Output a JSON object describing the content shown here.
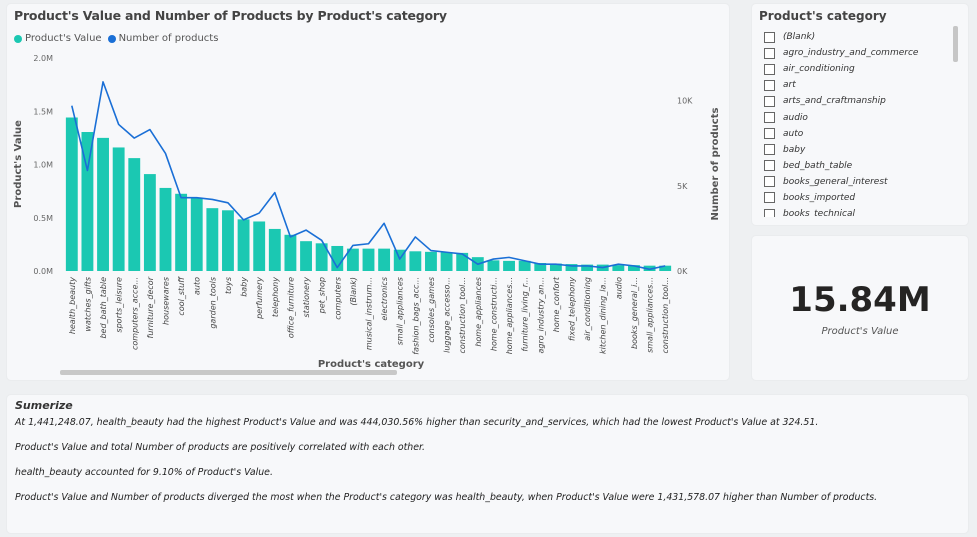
{
  "chart": {
    "title": "Product's Value and Number of Products  by Product's category",
    "legend": [
      {
        "label": "Product's Value",
        "color": "#1bc8b2"
      },
      {
        "label": "Number of products",
        "color": "#1a6fd6"
      }
    ],
    "xlabel": "Product's category",
    "ylabel_left": "Product's Value",
    "ylabel_right": "Number of products",
    "left_ticks": [
      "0.0M",
      "0.5M",
      "1.0M",
      "1.5M",
      "2.0M"
    ],
    "right_ticks": [
      "0K",
      "5K",
      "10K"
    ]
  },
  "chart_data": {
    "type": "bar",
    "categories": [
      "health_beauty",
      "watches_gifts",
      "bed_bath_table",
      "sports_leisure",
      "computers_acce...",
      "furniture_decor",
      "housewares",
      "cool_stuff",
      "auto",
      "garden_tools",
      "toys",
      "baby",
      "perfumery",
      "telephony",
      "office_furniture",
      "stationery",
      "pet_shop",
      "computers",
      "(Blank)",
      "musical_instrum...",
      "electronics",
      "small_appliances",
      "fashion_bags_acc...",
      "consoles_games",
      "luggage_accesso...",
      "construction_tool...",
      "home_appliances",
      "home_constructi...",
      "home_appliances...",
      "furniture_living_r...",
      "agro_industry_an...",
      "home_confort",
      "fixed_telephony",
      "air_conditioning",
      "kitchen_dining_la...",
      "audio",
      "books_general_i...",
      "small_appliances...",
      "construction_tool..."
    ],
    "series": [
      {
        "name": "Product's Value",
        "axis": "left",
        "color": "#1bc8b2",
        "values": [
          1441248,
          1305000,
          1250000,
          1160000,
          1060000,
          910000,
          780000,
          725000,
          690000,
          590000,
          570000,
          485000,
          465000,
          395000,
          340000,
          280000,
          260000,
          235000,
          210000,
          210000,
          210000,
          200000,
          185000,
          180000,
          175000,
          170000,
          130000,
          100000,
          95000,
          95000,
          75000,
          70000,
          65000,
          60000,
          60000,
          55000,
          55000,
          50000,
          50000
        ]
      },
      {
        "name": "Number of products",
        "axis": "right",
        "color": "#1a6fd6",
        "values": [
          9700,
          5900,
          11100,
          8600,
          7800,
          8300,
          6900,
          4300,
          4300,
          4200,
          4000,
          3000,
          3400,
          4600,
          2000,
          2400,
          1800,
          200,
          1500,
          1600,
          2800,
          700,
          2000,
          1200,
          1100,
          1000,
          400,
          700,
          800,
          600,
          400,
          400,
          300,
          300,
          200,
          400,
          300,
          100,
          300
        ]
      }
    ],
    "ylim_left": [
      0,
      2000000
    ],
    "ylim_right": [
      0,
      12500
    ],
    "xlabel": "Product's category",
    "ylabel": "Product's Value",
    "ylabel_right": "Number of products",
    "title": "Product's Value and Number of Products  by Product's category"
  },
  "slicer": {
    "title": "Product's category",
    "items": [
      "(Blank)",
      "agro_industry_and_commerce",
      "air_conditioning",
      "art",
      "arts_and_craftmanship",
      "audio",
      "auto",
      "baby",
      "bed_bath_table",
      "books_general_interest",
      "books_imported",
      "books_technical"
    ]
  },
  "card": {
    "value": "15.84M",
    "label": "Product's Value"
  },
  "summary": {
    "title": "Sumerize",
    "lines": [
      "At 1,441,248.07, health_beauty had the highest Product's Value and was 444,030.56% higher than security_and_services, which had the lowest Product's Value at 324.51.",
      "Product's Value and total Number of products are positively correlated with each other.",
      "health_beauty accounted for 9.10% of Product's Value.",
      "Product's Value and Number of products diverged the most when the Product's category was health_beauty, when Product's Value were 1,431,578.07 higher than Number of products."
    ]
  }
}
